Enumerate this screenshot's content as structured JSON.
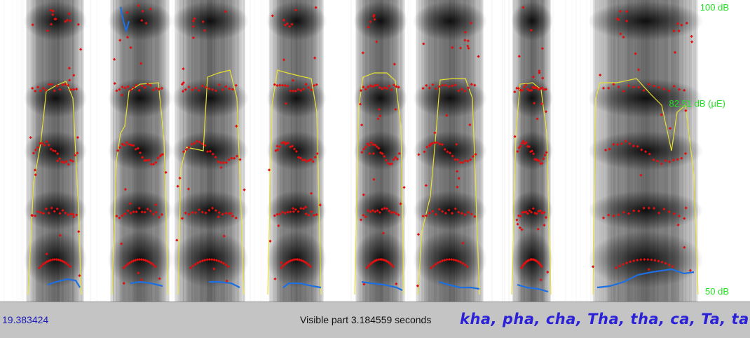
{
  "spectrogram": {
    "db_max_label": "100 dB",
    "db_mid_label": "82.51 dB (µE)",
    "db_min_label": "50 dB",
    "colors": {
      "background": "#ffffff",
      "intensity": "#000000",
      "formant_points": "#e01010",
      "intensity_curve": "#e8e030",
      "pitch_curve": "#1e6fe0",
      "db_labels": "#22e022"
    }
  },
  "statusbar": {
    "cursor_time": "19.383424",
    "visible_part": "Visible part 3.184559 seconds",
    "transcript": "kha, pha, cha, Tha, tha, ca, Ta, tav,"
  }
}
